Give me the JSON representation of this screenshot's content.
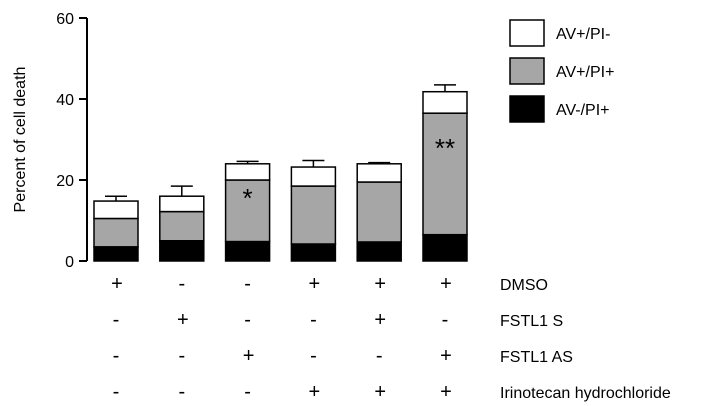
{
  "chart_data": {
    "type": "bar",
    "stacked": true,
    "title": "",
    "xlabel": "",
    "ylabel": "Percent of cell death",
    "ylim": [
      0,
      60
    ],
    "yticks": [
      0,
      20,
      40,
      60
    ],
    "grid": false,
    "legend_position": "top-right",
    "groups": 6,
    "series": [
      {
        "name": "AV-/PI+",
        "color": "#000000",
        "values": [
          3.5,
          5.0,
          4.8,
          4.2,
          4.7,
          6.5
        ],
        "errors": [
          0.8,
          1.0,
          0.8,
          0.5,
          0.7,
          1.8
        ]
      },
      {
        "name": "AV+/PI+",
        "color": "#a6a6a6",
        "values": [
          7.0,
          7.2,
          15.2,
          14.3,
          14.8,
          30.0
        ],
        "errors": [
          1.2,
          0.6,
          2.5,
          1.3,
          0.5,
          3.2
        ]
      },
      {
        "name": "AV+/PI-",
        "color": "#ffffff",
        "values": [
          4.3,
          3.8,
          4.0,
          4.7,
          4.5,
          5.3
        ],
        "errors": [
          1.2,
          2.5,
          0.6,
          1.6,
          0.3,
          1.7
        ]
      }
    ],
    "annotations": [
      {
        "group": 2,
        "text": "*"
      },
      {
        "group": 5,
        "text": "**"
      }
    ],
    "conditions": [
      {
        "label": "DMSO",
        "signs": [
          "+",
          "-",
          "-",
          "+",
          "+",
          "+"
        ]
      },
      {
        "label": "FSTL1 S",
        "signs": [
          "-",
          "+",
          "-",
          "-",
          "+",
          "-"
        ]
      },
      {
        "label": "FSTL1 AS",
        "signs": [
          "-",
          "-",
          "+",
          "-",
          "-",
          "+"
        ]
      },
      {
        "label": "Irinotecan hydrochloride",
        "signs": [
          "-",
          "-",
          "-",
          "+",
          "+",
          "+"
        ]
      }
    ]
  }
}
